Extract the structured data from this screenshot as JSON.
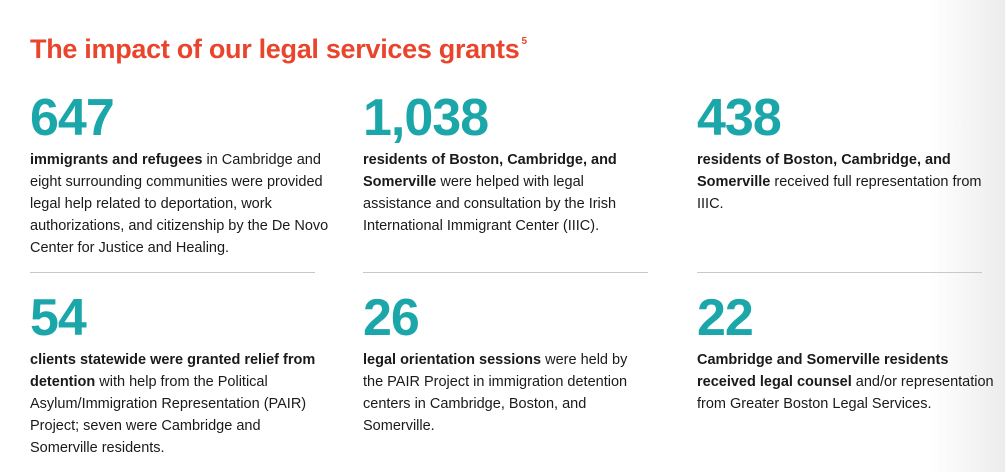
{
  "header": {
    "title": "The impact of our legal services grants",
    "footnote": "5"
  },
  "stats": [
    {
      "number": "647",
      "bold": "immigrants and refugees",
      "text": " in Cambridge and eight surrounding communities were provided legal help related to deportation, work authorizations, and citizenship by the De Novo Center for Justice and Healing."
    },
    {
      "number": "1,038",
      "bold": "residents of Boston, Cambridge, and Somerville",
      "text": " were helped with legal assistance and consultation by the Irish International Immigrant Center (IIIC)."
    },
    {
      "number": "438",
      "bold": "residents of Boston, Cambridge, and Somerville",
      "text": " received full representation from IIIC."
    },
    {
      "number": "54",
      "bold": "clients statewide were granted relief from detention",
      "text": " with help from the Political Asylum/Immigration Representation (PAIR) Project; seven were Cambridge and Somerville residents."
    },
    {
      "number": "26",
      "bold": "legal orientation sessions",
      "text": " were held by the PAIR Project in immigration detention centers in Cambridge, Boston, and Somerville."
    },
    {
      "number": "22",
      "bold": "Cambridge and Somerville residents received legal counsel",
      "text": " and/or representation from Greater Boston Legal Services."
    }
  ]
}
